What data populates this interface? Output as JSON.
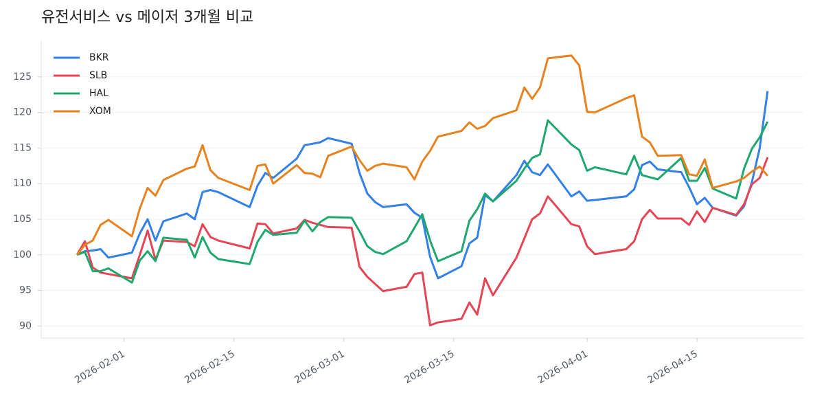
{
  "chart_data": {
    "type": "line",
    "title": "유전서비스 vs 메이저 3개월 비교",
    "x": [
      "2026-01-26",
      "2026-01-27",
      "2026-01-28",
      "2026-01-29",
      "2026-01-30",
      "2026-02-02",
      "2026-02-03",
      "2026-02-04",
      "2026-02-05",
      "2026-02-06",
      "2026-02-09",
      "2026-02-10",
      "2026-02-11",
      "2026-02-12",
      "2026-02-13",
      "2026-02-17",
      "2026-02-18",
      "2026-02-19",
      "2026-02-20",
      "2026-02-23",
      "2026-02-24",
      "2026-02-25",
      "2026-02-26",
      "2026-02-27",
      "2026-03-02",
      "2026-03-03",
      "2026-03-04",
      "2026-03-05",
      "2026-03-06",
      "2026-03-09",
      "2026-03-10",
      "2026-03-11",
      "2026-03-12",
      "2026-03-13",
      "2026-03-16",
      "2026-03-17",
      "2026-03-18",
      "2026-03-19",
      "2026-03-20",
      "2026-03-23",
      "2026-03-24",
      "2026-03-25",
      "2026-03-26",
      "2026-03-27",
      "2026-03-30",
      "2026-03-31",
      "2026-04-01",
      "2026-04-02",
      "2026-04-06",
      "2026-04-07",
      "2026-04-08",
      "2026-04-09",
      "2026-04-10",
      "2026-04-13",
      "2026-04-14",
      "2026-04-15",
      "2026-04-16",
      "2026-04-17",
      "2026-04-20",
      "2026-04-21",
      "2026-04-22",
      "2026-04-23",
      "2026-04-24"
    ],
    "series": [
      {
        "name": "BKR",
        "color": "#3380e6",
        "values": [
          100,
          100.5,
          100.6,
          100.8,
          99.6,
          100.3,
          103,
          105,
          102,
          104.7,
          105.8,
          105,
          108.8,
          109.1,
          108.8,
          106.7,
          109.7,
          111.5,
          110.8,
          113.5,
          115.4,
          115.6,
          115.8,
          116.4,
          115.6,
          111.5,
          108.6,
          107.4,
          106.7,
          107.1,
          105.9,
          105.2,
          99.7,
          96.7,
          98.4,
          101.6,
          102.4,
          108.4,
          107.5,
          111.2,
          113.2,
          111.6,
          111.2,
          112.7,
          108.2,
          108.9,
          107.6,
          107.7,
          108.2,
          109.2,
          112.6,
          113.1,
          112,
          111.6,
          109.5,
          107.1,
          108,
          106.6,
          105.5,
          106.8,
          110.2,
          115,
          123
        ]
      },
      {
        "name": "SLB",
        "color": "#e64555",
        "values": [
          100,
          101.9,
          98.2,
          97.5,
          97.3,
          96.7,
          100,
          103.4,
          99.3,
          102,
          101.8,
          101.2,
          104.3,
          102.5,
          102,
          100.9,
          104.4,
          104.3,
          103,
          103.7,
          104.9,
          104.5,
          104.2,
          103.9,
          103.8,
          98.3,
          96.9,
          95.9,
          94.9,
          95.5,
          97.3,
          97.5,
          90.1,
          90.5,
          91,
          93.3,
          91.6,
          96.7,
          94.3,
          99.6,
          102.3,
          105,
          105.8,
          108.2,
          104.3,
          104,
          101.2,
          100.1,
          100.8,
          101.9,
          105,
          106.3,
          105.1,
          105.1,
          104.2,
          106.1,
          104.6,
          106.6,
          105.6,
          107.1,
          109.9,
          110.8,
          113.7
        ]
      },
      {
        "name": "HAL",
        "color": "#1fa86e",
        "values": [
          100,
          100.4,
          97.7,
          97.7,
          98.1,
          96.1,
          99.2,
          100.5,
          99.1,
          102.4,
          102.1,
          99.6,
          102.5,
          100.3,
          99.4,
          98.7,
          101.8,
          103.5,
          102.8,
          103.1,
          104.8,
          103.3,
          104.6,
          105.3,
          105.2,
          103.3,
          101.2,
          100.4,
          100.1,
          101.9,
          103.8,
          105.7,
          102,
          99.1,
          100.5,
          104.8,
          106.4,
          108.6,
          107.5,
          110.4,
          112.1,
          113.6,
          114.1,
          118.9,
          115.5,
          114.7,
          111.8,
          112.3,
          111.3,
          113.9,
          111.2,
          110.9,
          110.6,
          113.6,
          110.4,
          110.4,
          112.2,
          109.3,
          107.9,
          112.1,
          114.9,
          116.5,
          118.7
        ]
      },
      {
        "name": "XOM",
        "color": "#e6831f",
        "values": [
          100,
          101.4,
          102,
          104.2,
          104.9,
          102.6,
          106.5,
          109.4,
          108.3,
          110.5,
          112.1,
          112.4,
          115.4,
          111.9,
          110.8,
          109.1,
          112.5,
          112.7,
          110,
          112.6,
          111.5,
          111.4,
          110.9,
          113.9,
          115.2,
          113.3,
          111.8,
          112.5,
          112.8,
          112.3,
          110.6,
          113.1,
          114.6,
          116.6,
          117.4,
          118.6,
          117.7,
          118.1,
          119.2,
          120.3,
          123.5,
          121.9,
          123.5,
          127.6,
          128,
          126.6,
          120.1,
          120,
          122,
          122.4,
          116.6,
          115.8,
          113.9,
          114,
          111.3,
          111.1,
          113.4,
          109.4,
          110.3,
          110.8,
          111.7,
          112.4,
          111.1
        ]
      }
    ],
    "xlim": [
      "2026-01-21",
      "2026-04-29"
    ],
    "xticks": [
      "2026-02-01",
      "2026-02-15",
      "2026-03-01",
      "2026-03-15",
      "2026-04-01",
      "2026-04-15"
    ],
    "ylim": [
      88.3,
      130
    ],
    "yticks": [
      90,
      95,
      100,
      105,
      110,
      115,
      120,
      125
    ],
    "grid": true,
    "legend": "upper-left"
  }
}
